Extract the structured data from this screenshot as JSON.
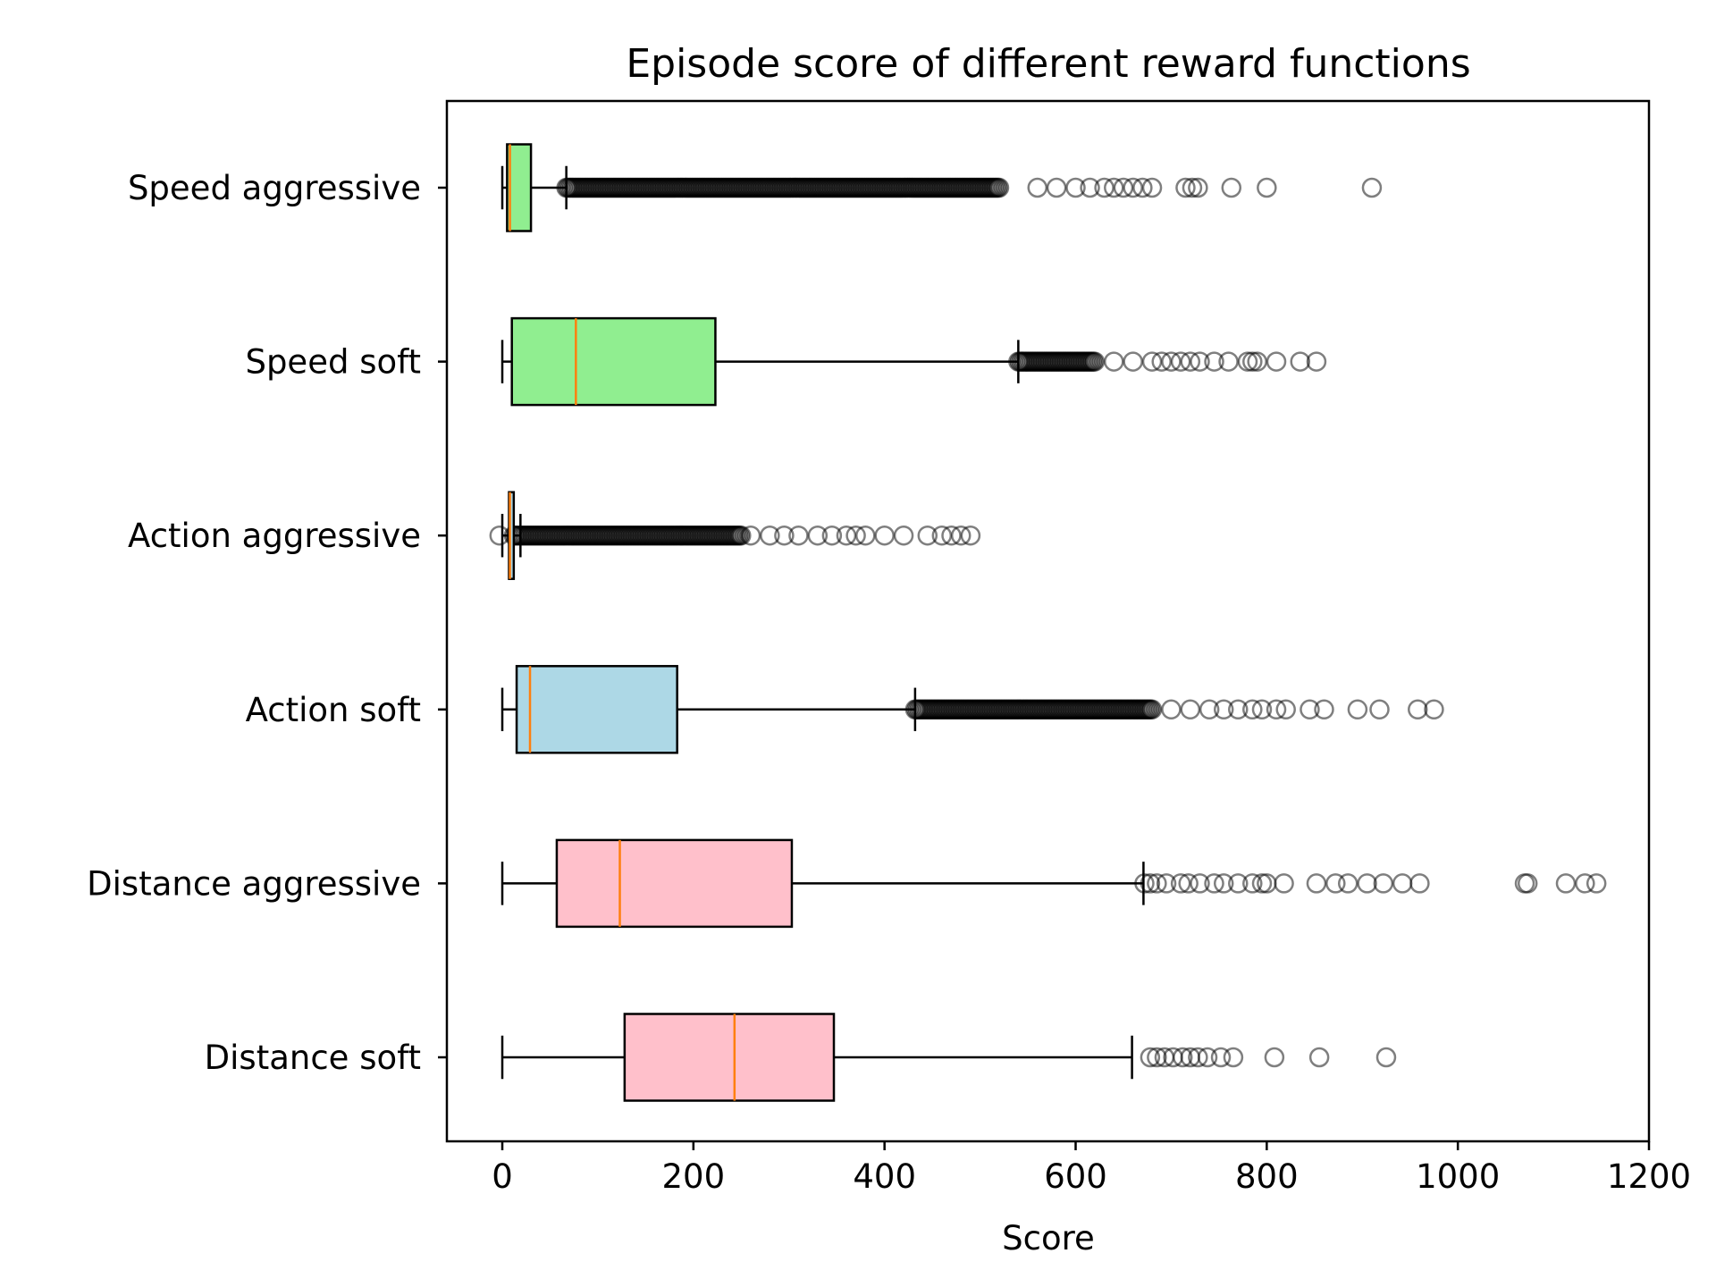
{
  "chart_data": {
    "type": "boxplot",
    "orientation": "horizontal",
    "title": "Episode score of different reward functions",
    "xlabel": "Score",
    "ylabel": "",
    "xlim": [
      -58,
      1200
    ],
    "xticks": [
      0,
      200,
      400,
      600,
      800,
      1000,
      1200
    ],
    "grid": false,
    "series": [
      {
        "name": "Speed aggressive",
        "color": "#90ee90",
        "whisker_low": 0,
        "q1": 5,
        "median": 8,
        "q3": 30,
        "whisker_high": 67,
        "outliers_dense": [
          67,
          520
        ],
        "outliers": [
          560,
          580,
          600,
          615,
          630,
          640,
          650,
          660,
          670,
          680,
          715,
          722,
          728,
          763,
          800,
          910
        ]
      },
      {
        "name": "Speed soft",
        "color": "#90ee90",
        "whisker_low": 0,
        "q1": 10,
        "median": 77,
        "q3": 223,
        "whisker_high": 540,
        "outliers_dense": [
          540,
          620
        ],
        "outliers": [
          640,
          660,
          680,
          690,
          700,
          710,
          720,
          730,
          745,
          760,
          780,
          785,
          790,
          810,
          835,
          852
        ]
      },
      {
        "name": "Action aggressive",
        "color": "#add8e6",
        "whisker_low": 0,
        "q1": 7,
        "median": 8,
        "q3": 12,
        "whisker_high": 19,
        "outliers_dense": [
          12,
          250
        ],
        "outliers": [
          -3,
          260,
          280,
          295,
          310,
          330,
          345,
          360,
          370,
          380,
          400,
          420,
          445,
          460,
          470,
          480,
          490
        ]
      },
      {
        "name": "Action soft",
        "color": "#add8e6",
        "whisker_low": 0,
        "q1": 15,
        "median": 29,
        "q3": 183,
        "whisker_high": 432,
        "outliers_dense": [
          432,
          680
        ],
        "outliers": [
          700,
          720,
          740,
          755,
          770,
          785,
          795,
          810,
          820,
          845,
          860,
          895,
          918,
          958,
          975
        ]
      },
      {
        "name": "Distance aggressive",
        "color": "#ffc0cb",
        "whisker_low": 0,
        "q1": 57,
        "median": 123,
        "q3": 303,
        "whisker_high": 671,
        "outliers": [
          672,
          678,
          685,
          695,
          710,
          718,
          730,
          745,
          755,
          770,
          785,
          795,
          800,
          818,
          852,
          872,
          885,
          905,
          922,
          942,
          960,
          1070,
          1073,
          1113,
          1133,
          1145
        ]
      },
      {
        "name": "Distance soft",
        "color": "#ffc0cb",
        "whisker_low": 0,
        "q1": 128,
        "median": 243,
        "q3": 347,
        "whisker_high": 659,
        "outliers": [
          678,
          685,
          693,
          702,
          712,
          720,
          728,
          738,
          752,
          765,
          808,
          855,
          925
        ]
      }
    ],
    "median_color": "#ff7f0e",
    "outlier_marker": "open circle"
  }
}
